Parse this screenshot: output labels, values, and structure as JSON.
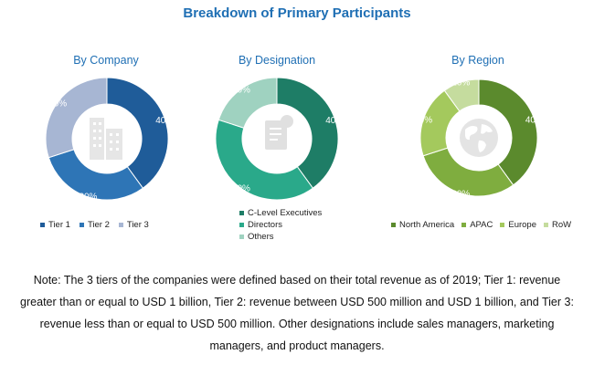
{
  "page_title": "Breakdown of Primary Participants",
  "chart_data": [
    {
      "type": "pie",
      "title": "By Company",
      "icon": "building-icon",
      "slices": [
        {
          "label": "Tier 1",
          "value": 40,
          "display": "40%",
          "color": "#1f5c99"
        },
        {
          "label": "Tier 2",
          "value": 30,
          "display": "30%",
          "color": "#2e75b6"
        },
        {
          "label": "Tier 3",
          "value": 30,
          "display": "30%",
          "color": "#a7b6d3"
        }
      ],
      "legend_position": "bottom"
    },
    {
      "type": "pie",
      "title": "By Designation",
      "icon": "document-person-icon",
      "slices": [
        {
          "label": "C-Level Executives",
          "value": 40,
          "display": "40%",
          "color": "#1e7d66"
        },
        {
          "label": "Directors",
          "value": 40,
          "display": "40%",
          "color": "#2aa98a"
        },
        {
          "label": "Others",
          "value": 20,
          "display": "20%",
          "color": "#9fd2c0"
        }
      ],
      "legend_position": "bottom"
    },
    {
      "type": "pie",
      "title": "By Region",
      "icon": "globe-icon",
      "slices": [
        {
          "label": "North America",
          "value": 40,
          "display": "40%",
          "color": "#5b8a2d"
        },
        {
          "label": "APAC",
          "value": 30,
          "display": "30%",
          "color": "#7fad3f"
        },
        {
          "label": "Europe",
          "value": 20,
          "display": "20%",
          "color": "#a4c95d"
        },
        {
          "label": "RoW",
          "value": 10,
          "display": "10%",
          "color": "#c5dc9e"
        }
      ],
      "legend_position": "bottom"
    }
  ],
  "note": "Note: The 3 tiers of the companies were defined based on their total revenue as of 2019; Tier 1: revenue greater than or equal to USD 1 billion, Tier 2: revenue between USD 500 million and USD 1 billion, and Tier 3: revenue less than or equal to USD 500 million. Other designations include sales managers, marketing managers, and product managers."
}
